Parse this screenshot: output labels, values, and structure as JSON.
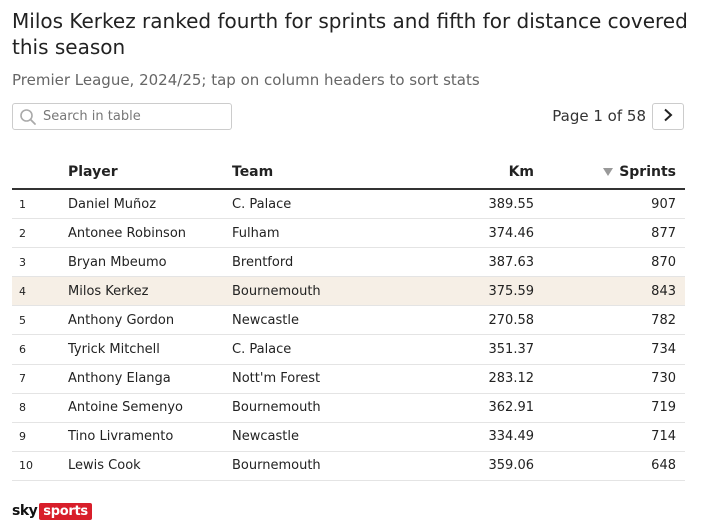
{
  "header": {
    "title": "Milos Kerkez ranked fourth for sprints and fifth for distance covered this season",
    "subtitle": "Premier League, 2024/25; tap on column headers to sort stats"
  },
  "search": {
    "placeholder": "Search in table",
    "value": "",
    "icon": "search-icon"
  },
  "pagination": {
    "label": "Page 1 of 58",
    "next_icon": "chevron-right-icon"
  },
  "table": {
    "columns": [
      "",
      "Player",
      "Team",
      "Km",
      "Sprints"
    ],
    "sorted_column": "Sprints",
    "sort_direction": "descending",
    "highlight_color": "#f6efe6",
    "rows": [
      {
        "rank": "1",
        "player": "Daniel Muñoz",
        "team": "C. Palace",
        "km": "389.55",
        "sprints": "907"
      },
      {
        "rank": "2",
        "player": "Antonee Robinson",
        "team": "Fulham",
        "km": "374.46",
        "sprints": "877"
      },
      {
        "rank": "3",
        "player": "Bryan Mbeumo",
        "team": "Brentford",
        "km": "387.63",
        "sprints": "870"
      },
      {
        "rank": "4",
        "player": "Milos Kerkez",
        "team": "Bournemouth",
        "km": "375.59",
        "sprints": "843"
      },
      {
        "rank": "5",
        "player": "Anthony Gordon",
        "team": "Newcastle",
        "km": "270.58",
        "sprints": "782"
      },
      {
        "rank": "6",
        "player": "Tyrick Mitchell",
        "team": "C. Palace",
        "km": "351.37",
        "sprints": "734"
      },
      {
        "rank": "7",
        "player": "Anthony Elanga",
        "team": "Nott'm Forest",
        "km": "283.12",
        "sprints": "730"
      },
      {
        "rank": "8",
        "player": "Antoine Semenyo",
        "team": "Bournemouth",
        "km": "362.91",
        "sprints": "719"
      },
      {
        "rank": "9",
        "player": "Tino Livramento",
        "team": "Newcastle",
        "km": "334.49",
        "sprints": "714"
      },
      {
        "rank": "10",
        "player": "Lewis Cook",
        "team": "Bournemouth",
        "km": "359.06",
        "sprints": "648"
      }
    ]
  },
  "footer": {
    "logo_part1": "sky",
    "logo_part2": "sports",
    "brand_color": "#d81e2a"
  }
}
